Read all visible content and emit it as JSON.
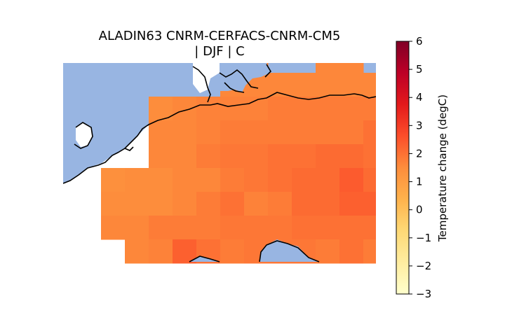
{
  "title": {
    "line1": "ALADIN63 CNRM-CERFACS-CNRM-CM5",
    "line2": "| DJF | C"
  },
  "colors": {
    "ocean": "#98b5e2",
    "coast": "#000000",
    "background": "#ffffff"
  },
  "colorbar": {
    "label": "Temperature change (degC)",
    "min": -3,
    "max": 6,
    "ticks": [
      "−3",
      "−2",
      "−1",
      "0",
      "1",
      "2",
      "3",
      "4",
      "5",
      "6"
    ],
    "tick_values": [
      -3,
      -2,
      -1,
      0,
      1,
      2,
      3,
      4,
      5,
      6
    ],
    "colormap": "YlOrRd",
    "stops": [
      "#ffffcc",
      "#ffeda0",
      "#fed976",
      "#feb24c",
      "#fd8d3c",
      "#fc4e2a",
      "#e31a1c",
      "#bd0026",
      "#800026"
    ]
  },
  "chart_data": {
    "type": "heatmap",
    "title": "ALADIN63 CNRM-CERFACS-CNRM-CM5 | DJF | C",
    "colorbar_label": "Temperature change (degC)",
    "vmin": -3,
    "vmax": 6,
    "cols": 13,
    "rows": 9,
    "values": [
      [
        null,
        null,
        null,
        null,
        null,
        null,
        1.6,
        1.6,
        null,
        null,
        1.6,
        1.6,
        null
      ],
      [
        null,
        null,
        null,
        null,
        null,
        null,
        1.6,
        1.6,
        1.6,
        1.6,
        1.6,
        1.6,
        1.6
      ],
      [
        null,
        null,
        null,
        1.5,
        1.6,
        1.7,
        1.7,
        1.7,
        1.8,
        1.8,
        1.8,
        1.8,
        1.8
      ],
      [
        null,
        null,
        null,
        1.6,
        1.6,
        1.7,
        1.8,
        1.8,
        1.8,
        1.8,
        1.8,
        1.8,
        2.0
      ],
      [
        null,
        null,
        null,
        1.6,
        1.6,
        1.8,
        1.9,
        1.9,
        2.0,
        2.0,
        2.1,
        2.1,
        2.0
      ],
      [
        null,
        1.4,
        1.5,
        1.5,
        1.6,
        1.6,
        1.8,
        1.9,
        2.0,
        2.1,
        2.1,
        2.4,
        2.1
      ],
      [
        null,
        1.5,
        1.5,
        1.5,
        1.6,
        1.8,
        2.0,
        1.7,
        1.8,
        2.1,
        2.1,
        2.3,
        2.3
      ],
      [
        null,
        1.6,
        1.6,
        1.8,
        1.8,
        1.8,
        1.9,
        1.9,
        1.9,
        2.0,
        2.0,
        2.0,
        2.0
      ],
      [
        null,
        null,
        1.6,
        1.7,
        2.3,
        2.0,
        1.8,
        1.9,
        1.9,
        1.9,
        1.8,
        2.0,
        1.8
      ]
    ]
  }
}
